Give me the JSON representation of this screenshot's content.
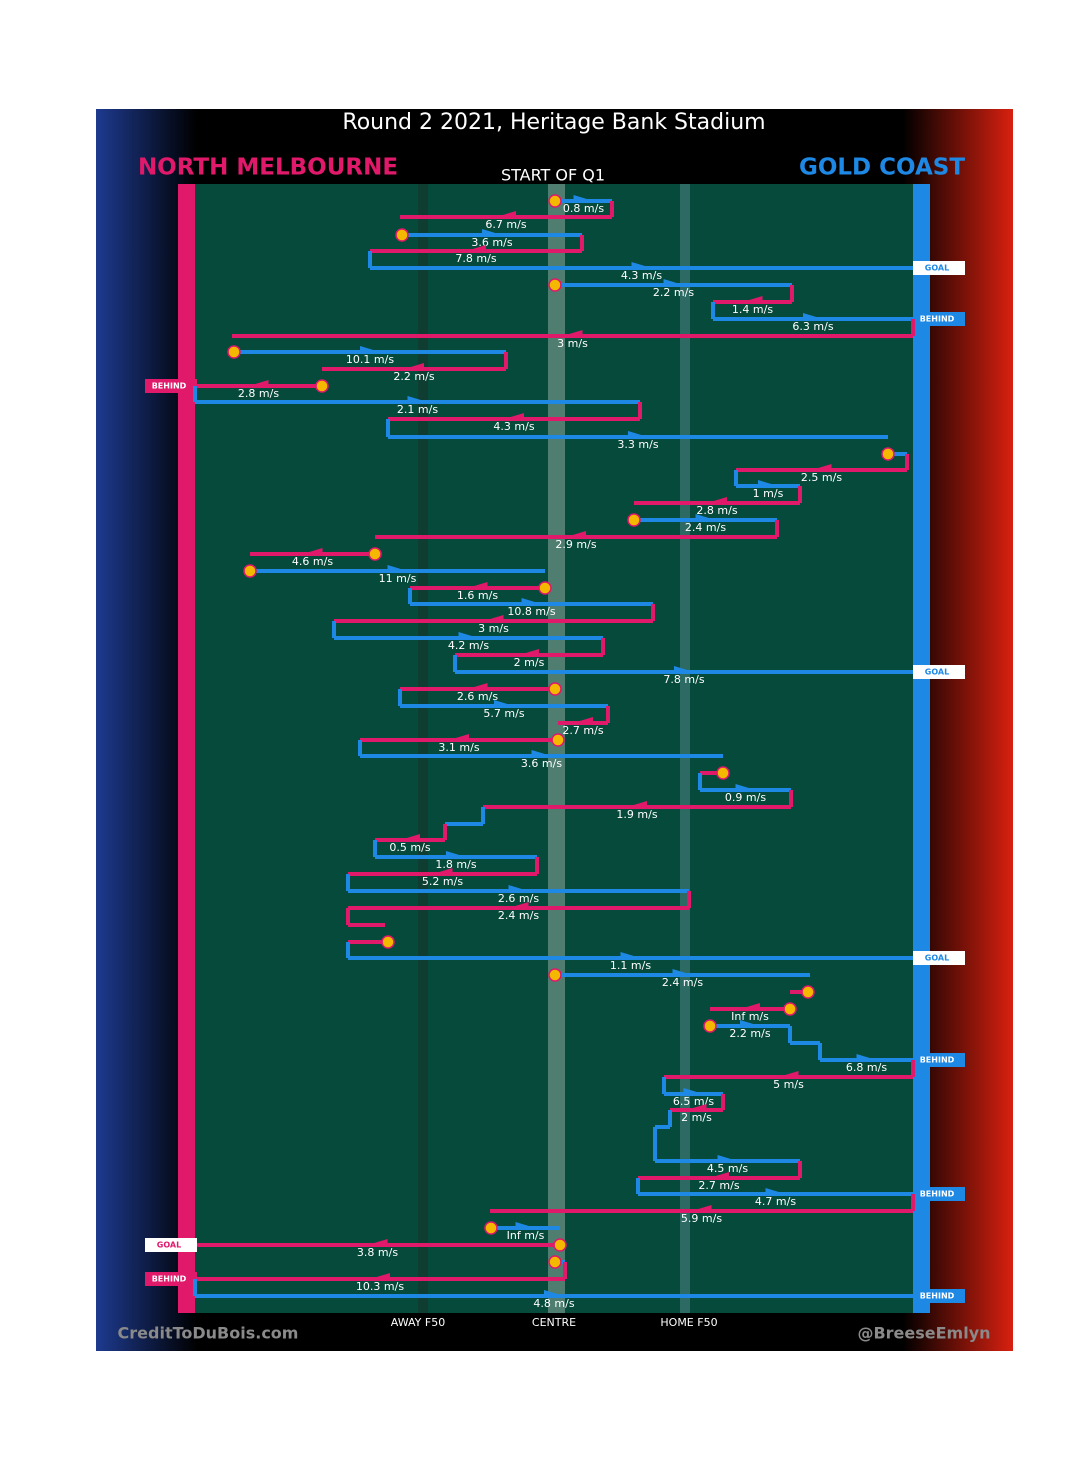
{
  "chart_data": {
    "type": "possession-chain",
    "title": "Round 2 2021, Heritage Bank Stadium",
    "home_team": "NORTH MELBOURNE",
    "away_team": "GOLD COAST",
    "period": "START OF Q1",
    "zones": [
      "AWAY F50",
      "CENTRE",
      "HOME F50"
    ],
    "credits": [
      "CreditToDuBois.com",
      "@BreeseEmlyn"
    ],
    "speeds": [
      "0.8 m/s",
      "6.7 m/s",
      "3.6 m/s",
      "7.8 m/s",
      "4.3 m/s",
      "2.2 m/s",
      "1.4 m/s",
      "6.3 m/s",
      "3 m/s",
      "10.1 m/s",
      "2.2 m/s",
      "2.8 m/s",
      "2.1 m/s",
      "4.3 m/s",
      "3.3 m/s",
      "2.5 m/s",
      "1 m/s",
      "2.8 m/s",
      "2.4 m/s",
      "2.9 m/s",
      "4.6 m/s",
      "11 m/s",
      "1.6 m/s",
      "10.8 m/s",
      "3 m/s",
      "4.2 m/s",
      "2 m/s",
      "7.8 m/s",
      "2.6 m/s",
      "5.7 m/s",
      "2.7 m/s",
      "3.1 m/s",
      "3.6 m/s",
      "0.9 m/s",
      "1.9 m/s",
      "0.5 m/s",
      "1.8 m/s",
      "5.2 m/s",
      "2.6 m/s",
      "2.4 m/s",
      "1.1 m/s",
      "2.4 m/s",
      "Inf m/s",
      "2.2 m/s",
      "6.8 m/s",
      "5 m/s",
      "6.5 m/s",
      "2 m/s",
      "4.5 m/s",
      "2.7 m/s",
      "4.7 m/s",
      "5.9 m/s",
      "Inf m/s",
      "3.8 m/s",
      "10.3 m/s",
      "4.8 m/s"
    ],
    "outcomes": [
      "GOAL",
      "BEHIND",
      "BEHIND",
      "GOAL",
      "GOAL",
      "BEHIND",
      "BEHIND",
      "GOAL",
      "BEHIND",
      "BEHIND"
    ]
  }
}
